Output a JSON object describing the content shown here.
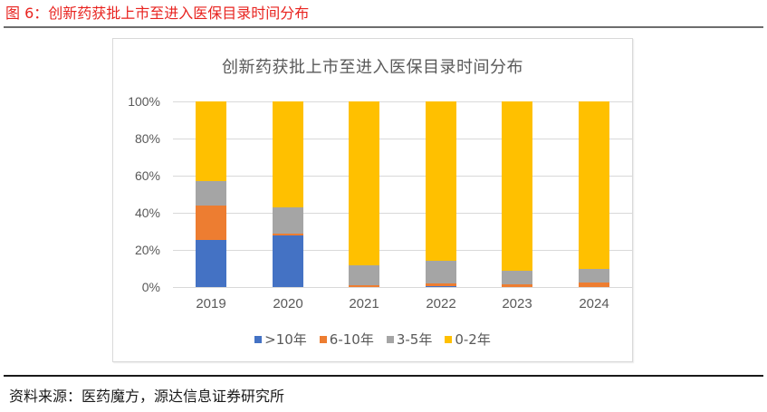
{
  "figure": {
    "caption": "图 6：创新药获批上市至进入医保目录时间分布",
    "source": "资料来源：医药魔方，源达信息证券研究所"
  },
  "colors": {
    "caption_red": "#e8231f",
    "series_gt10": "#4472c4",
    "series_6_10": "#ed7d31",
    "series_3_5": "#a5a5a5",
    "series_0_2": "#ffc000",
    "grid": "#d9d9d9",
    "axis_text": "#595959"
  },
  "chart_data": {
    "type": "bar",
    "stacked": true,
    "percent_stacked": true,
    "title": "创新药获批上市至进入医保目录时间分布",
    "xlabel": "",
    "ylabel": "",
    "ylim": [
      0,
      100
    ],
    "yticks": [
      "0%",
      "20%",
      "40%",
      "60%",
      "80%",
      "100%"
    ],
    "grid": true,
    "legend_position": "bottom",
    "categories": [
      "2019",
      "2020",
      "2021",
      "2022",
      "2023",
      "2024"
    ],
    "series": [
      {
        "name": ">10年",
        "color": "#4472c4",
        "values": [
          25.4,
          27.7,
          0.0,
          0.6,
          0.0,
          0.0
        ]
      },
      {
        "name": "6-10年",
        "color": "#ed7d31",
        "values": [
          18.5,
          1.1,
          1.2,
          1.5,
          1.3,
          2.6
        ]
      },
      {
        "name": "3-5年",
        "color": "#a5a5a5",
        "values": [
          13.0,
          14.1,
          10.5,
          12.2,
          7.3,
          7.2
        ]
      },
      {
        "name": "0-2年",
        "color": "#ffc000",
        "values": [
          43.1,
          57.1,
          88.3,
          85.7,
          91.4,
          90.2
        ]
      }
    ]
  }
}
